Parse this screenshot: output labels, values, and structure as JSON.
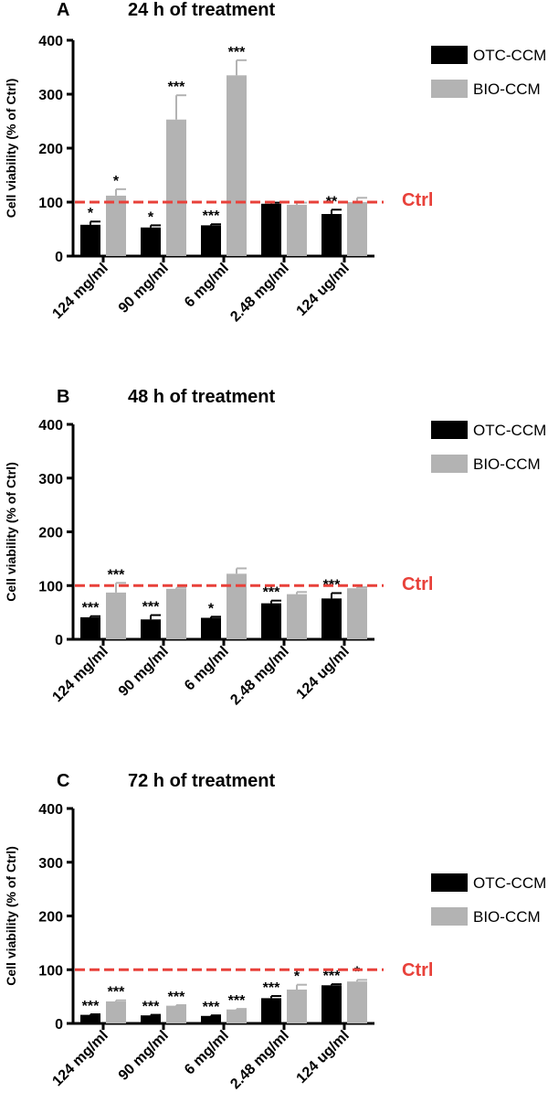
{
  "colors": {
    "otc": "#000000",
    "bio": "#b3b3b3",
    "ctrl": "#e8413a",
    "axis": "#000000"
  },
  "chart_data": [
    {
      "type": "bar",
      "panel": "A",
      "title": "24 h of treatment",
      "ylabel": "Cell viability (% of Ctrl)",
      "xlabel": "",
      "ylim": [
        0,
        400
      ],
      "yticks": [
        0,
        100,
        200,
        300,
        400
      ],
      "categories": [
        "124 mg/ml",
        "90 mg/ml",
        "6 mg/ml",
        "2.48 mg/ml",
        "124 ug/ml"
      ],
      "series": [
        {
          "name": "OTC-CCM",
          "color": "#000000",
          "values": [
            58,
            53,
            57,
            97,
            78
          ],
          "errors": [
            6,
            4,
            2,
            2,
            8
          ],
          "sig": [
            "*",
            "*",
            "***",
            "",
            "**"
          ]
        },
        {
          "name": "BIO-CCM",
          "color": "#b3b3b3",
          "values": [
            112,
            253,
            335,
            95,
            100
          ],
          "errors": [
            12,
            45,
            28,
            4,
            8
          ],
          "sig": [
            "*",
            "***",
            "***",
            "",
            ""
          ]
        }
      ],
      "reference": {
        "value": 100,
        "label": "Ctrl"
      },
      "legend": "top-right"
    },
    {
      "type": "bar",
      "panel": "B",
      "title": "48 h of treatment",
      "ylabel": "Cell viability (% of Ctrl)",
      "xlabel": "",
      "ylim": [
        0,
        400
      ],
      "yticks": [
        0,
        100,
        200,
        300,
        400
      ],
      "categories": [
        "124 mg/ml",
        "90 mg/ml",
        "6 mg/ml",
        "2.48 mg/ml",
        "124 ug/ml"
      ],
      "series": [
        {
          "name": "OTC-CCM",
          "color": "#000000",
          "values": [
            41,
            37,
            40,
            67,
            76
          ],
          "errors": [
            2,
            8,
            2,
            5,
            10
          ],
          "sig": [
            "***",
            "***",
            "*",
            "***",
            "***"
          ]
        },
        {
          "name": "BIO-CCM",
          "color": "#b3b3b3",
          "values": [
            87,
            94,
            122,
            84,
            95
          ],
          "errors": [
            18,
            2,
            10,
            4,
            2
          ],
          "sig": [
            "***",
            "",
            "",
            "",
            ""
          ]
        }
      ],
      "reference": {
        "value": 100,
        "label": "Ctrl"
      },
      "legend": "top-right"
    },
    {
      "type": "bar",
      "panel": "C",
      "title": "72 h of treatment",
      "ylabel": "Cell viability (% of Ctrl)",
      "xlabel": "",
      "ylim": [
        0,
        400
      ],
      "yticks": [
        0,
        100,
        200,
        300,
        400
      ],
      "categories": [
        "124 mg/ml",
        "90 mg/ml",
        "6 mg/ml",
        "2.48 mg/ml",
        "124 ug/ml"
      ],
      "series": [
        {
          "name": "OTC-CCM",
          "color": "#000000",
          "values": [
            16,
            15,
            14,
            47,
            71
          ],
          "errors": [
            1,
            1,
            1,
            4,
            2
          ],
          "sig": [
            "***",
            "***",
            "***",
            "***",
            "***"
          ]
        },
        {
          "name": "BIO-CCM",
          "color": "#b3b3b3",
          "values": [
            41,
            33,
            26,
            63,
            78
          ],
          "errors": [
            2,
            1,
            1,
            9,
            3
          ],
          "sig": [
            "***",
            "***",
            "***",
            "*",
            "*"
          ]
        }
      ],
      "reference": {
        "value": 100,
        "label": "Ctrl"
      },
      "legend": "right"
    }
  ]
}
